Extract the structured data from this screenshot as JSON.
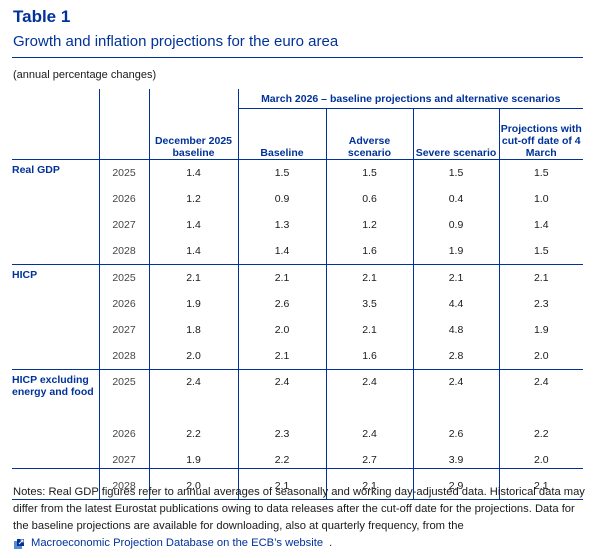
{
  "header": {
    "title": "Table 1",
    "subtitle": "Growth and inflation projections for the euro area",
    "unit_note": "(annual percentage changes)"
  },
  "table": {
    "group_header": "March 2026 – baseline projections and alternative scenarios",
    "columns": [
      "December 2025 baseline",
      "Baseline",
      "Adverse scenario",
      "Severe scenario",
      "Projections with cut-off date of 4 March"
    ],
    "groups": [
      {
        "label": "Real GDP",
        "rows": [
          {
            "year": "2025",
            "values": [
              "1.4",
              "1.5",
              "1.5",
              "1.5",
              "1.5"
            ]
          },
          {
            "year": "2026",
            "values": [
              "1.2",
              "0.9",
              "0.6",
              "0.4",
              "1.0"
            ]
          },
          {
            "year": "2027",
            "values": [
              "1.4",
              "1.3",
              "1.2",
              "0.9",
              "1.4"
            ]
          },
          {
            "year": "2028",
            "values": [
              "1.4",
              "1.4",
              "1.6",
              "1.9",
              "1.5"
            ]
          }
        ]
      },
      {
        "label": "HICP",
        "rows": [
          {
            "year": "2025",
            "values": [
              "2.1",
              "2.1",
              "2.1",
              "2.1",
              "2.1"
            ]
          },
          {
            "year": "2026",
            "values": [
              "1.9",
              "2.6",
              "3.5",
              "4.4",
              "2.3"
            ]
          },
          {
            "year": "2027",
            "values": [
              "1.8",
              "2.0",
              "2.1",
              "4.8",
              "1.9"
            ]
          },
          {
            "year": "2028",
            "values": [
              "2.0",
              "2.1",
              "1.6",
              "2.8",
              "2.0"
            ]
          }
        ]
      },
      {
        "label": "HICP excluding energy and food",
        "rows": [
          {
            "year": "2025",
            "values": [
              "2.4",
              "2.4",
              "2.4",
              "2.4",
              "2.4"
            ]
          },
          {
            "year": "2026",
            "values": [
              "2.2",
              "2.3",
              "2.4",
              "2.6",
              "2.2"
            ]
          },
          {
            "year": "2027",
            "values": [
              "1.9",
              "2.2",
              "2.7",
              "3.9",
              "2.0"
            ]
          },
          {
            "year": "2028",
            "values": [
              "2.0",
              "2.1",
              "2.1",
              "2.9",
              "2.1"
            ]
          }
        ]
      }
    ]
  },
  "notes": {
    "text": "Notes: Real GDP figures refer to annual averages of seasonally and working day-adjusted data. Historical data may differ from the latest Eurostat publications owing to data releases after the cut-off date for the projections. Data for the baseline projections are available for downloading, also at quarterly frequency, from the",
    "link_label": "Macroeconomic Projection Database on the ECB’s website",
    "link_suffix": ".",
    "icon": "external-link-icon"
  },
  "colors": {
    "accent": "#003299",
    "text": "#1a1a1a"
  }
}
